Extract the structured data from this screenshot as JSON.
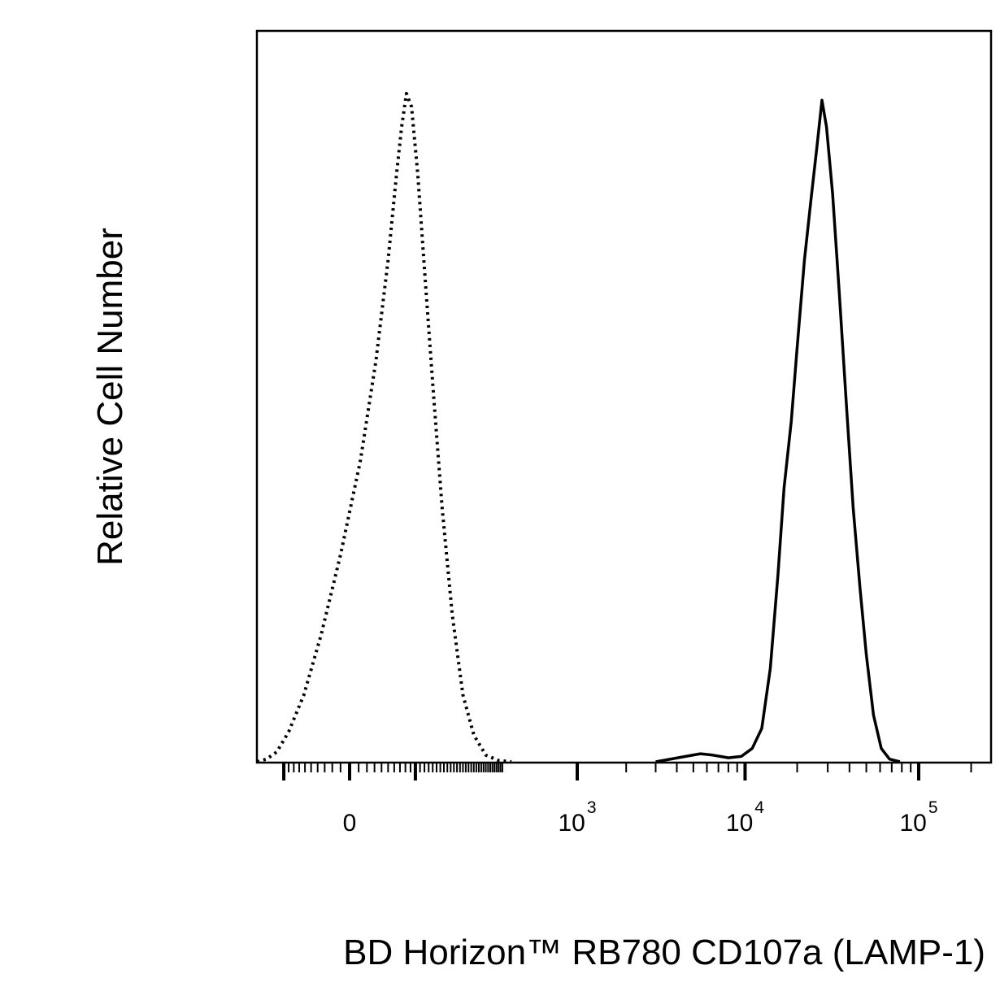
{
  "chart_data": {
    "type": "line",
    "title": "",
    "xlabel": "BD Horizon™ RB780 CD107a (LAMP-1)",
    "ylabel": "Relative Cell Number",
    "x_scale": "biexponential",
    "xlim": [
      -300,
      200000
    ],
    "ylim": [
      0,
      100
    ],
    "grid": false,
    "legend": "none",
    "x_ticks": [
      {
        "value": 0,
        "base": "0",
        "exp": ""
      },
      {
        "value": 1000,
        "base": "10",
        "exp": "3"
      },
      {
        "value": 10000,
        "base": "10",
        "exp": "4"
      },
      {
        "value": 100000,
        "base": "10",
        "exp": "5"
      }
    ],
    "series": [
      {
        "style": "dotted",
        "color": "#000000",
        "points": [
          [
            -165,
            0
          ],
          [
            -140,
            0.4
          ],
          [
            -115,
            1.5
          ],
          [
            -90,
            4.5
          ],
          [
            -62,
            10
          ],
          [
            -35,
            19
          ],
          [
            -10,
            31
          ],
          [
            12,
            45
          ],
          [
            32,
            60
          ],
          [
            50,
            75
          ],
          [
            64,
            88
          ],
          [
            73,
            95
          ],
          [
            82,
            100
          ],
          [
            92,
            98
          ],
          [
            105,
            88
          ],
          [
            122,
            72
          ],
          [
            142,
            55
          ],
          [
            165,
            38
          ],
          [
            195,
            22
          ],
          [
            230,
            10
          ],
          [
            270,
            4
          ],
          [
            320,
            1
          ],
          [
            380,
            0.2
          ],
          [
            450,
            0
          ]
        ]
      },
      {
        "style": "solid",
        "color": "#000000",
        "points": [
          [
            3000,
            0
          ],
          [
            3500,
            0.3
          ],
          [
            4500,
            0.8
          ],
          [
            5500,
            1.2
          ],
          [
            6500,
            1
          ],
          [
            8000,
            0.6
          ],
          [
            9500,
            0.8
          ],
          [
            11000,
            2
          ],
          [
            12500,
            5
          ],
          [
            14000,
            14
          ],
          [
            15500,
            28
          ],
          [
            16800,
            41
          ],
          [
            18500,
            51
          ],
          [
            20000,
            62
          ],
          [
            22000,
            75
          ],
          [
            24000,
            84
          ],
          [
            26000,
            92
          ],
          [
            27800,
            99
          ],
          [
            29500,
            95
          ],
          [
            32000,
            85
          ],
          [
            35000,
            70
          ],
          [
            38500,
            53
          ],
          [
            42000,
            38
          ],
          [
            46000,
            26
          ],
          [
            50000,
            16
          ],
          [
            55000,
            7
          ],
          [
            61000,
            2
          ],
          [
            68000,
            0.4
          ],
          [
            78000,
            0
          ]
        ]
      }
    ]
  }
}
